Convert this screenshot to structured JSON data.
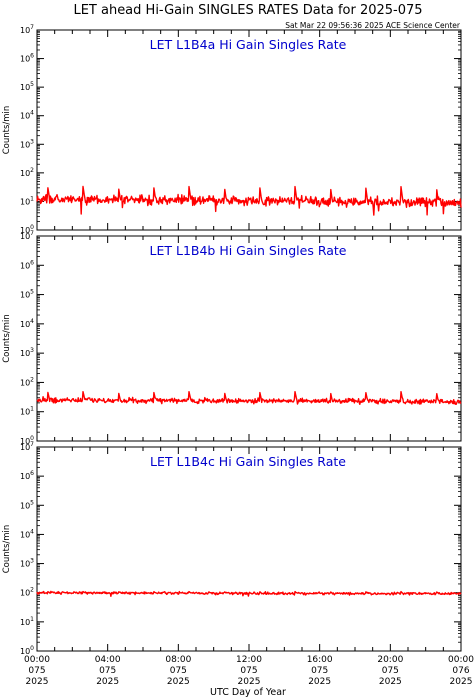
{
  "figure": {
    "title": "LET ahead Hi-Gain SINGLES RATES Data for 2025-075",
    "timestamp": "Sat Mar 22 09:56:36 2025 ACE Science Center",
    "xlabel": "UTC Day of Year",
    "ylabel": "Counts/min"
  },
  "chart_data": [
    {
      "type": "line",
      "title": "LET L1B4a Hi Gain Singles Rate",
      "ylabel": "Counts/min",
      "yscale": "log",
      "ylim": [
        1,
        10000000
      ],
      "xlim_hours": [
        0,
        24
      ],
      "base_level": 12,
      "noise_dex": 0.12,
      "spike_level": 35,
      "spike_period_hours": 2.0,
      "spike_offset_hours": 0.6,
      "trend_end_level": 9,
      "series_color": "#ff0000",
      "grid": false
    },
    {
      "type": "line",
      "title": "LET L1B4b Hi Gain Singles Rate",
      "ylabel": "Counts/min",
      "yscale": "log",
      "ylim": [
        1,
        10000000
      ],
      "xlim_hours": [
        0,
        24
      ],
      "base_level": 25,
      "noise_dex": 0.06,
      "spike_level": 50,
      "spike_period_hours": 2.0,
      "spike_offset_hours": 0.6,
      "trend_end_level": 22,
      "series_color": "#ff0000",
      "grid": false
    },
    {
      "type": "line",
      "title": "LET L1B4c Hi Gain Singles Rate",
      "ylabel": "Counts/min",
      "yscale": "log",
      "ylim": [
        1,
        10000000
      ],
      "xlim_hours": [
        0,
        24
      ],
      "base_level": 100,
      "noise_dex": 0.03,
      "spike_level": 110,
      "spike_period_hours": 2.0,
      "spike_offset_hours": 0.6,
      "trend_end_level": 92,
      "series_color": "#ff0000",
      "grid": false
    }
  ],
  "y_ticks": [
    {
      "base": "10",
      "exp": "0"
    },
    {
      "base": "10",
      "exp": "1"
    },
    {
      "base": "10",
      "exp": "2"
    },
    {
      "base": "10",
      "exp": "3"
    },
    {
      "base": "10",
      "exp": "4"
    },
    {
      "base": "10",
      "exp": "5"
    },
    {
      "base": "10",
      "exp": "6"
    },
    {
      "base": "10",
      "exp": "7"
    }
  ],
  "x_ticks": [
    {
      "hour": 0,
      "time": "00:00",
      "doy": "075",
      "year": "2025"
    },
    {
      "hour": 4,
      "time": "04:00",
      "doy": "075",
      "year": "2025"
    },
    {
      "hour": 8,
      "time": "08:00",
      "doy": "075",
      "year": "2025"
    },
    {
      "hour": 12,
      "time": "12:00",
      "doy": "075",
      "year": "2025"
    },
    {
      "hour": 16,
      "time": "16:00",
      "doy": "075",
      "year": "2025"
    },
    {
      "hour": 20,
      "time": "20:00",
      "doy": "075",
      "year": "2025"
    },
    {
      "hour": 24,
      "time": "00:00",
      "doy": "076",
      "year": "2025"
    }
  ],
  "colors": {
    "background": "#ffffff",
    "axes": "#000000",
    "panel_title": "#0000cc",
    "series": "#ff0000"
  }
}
